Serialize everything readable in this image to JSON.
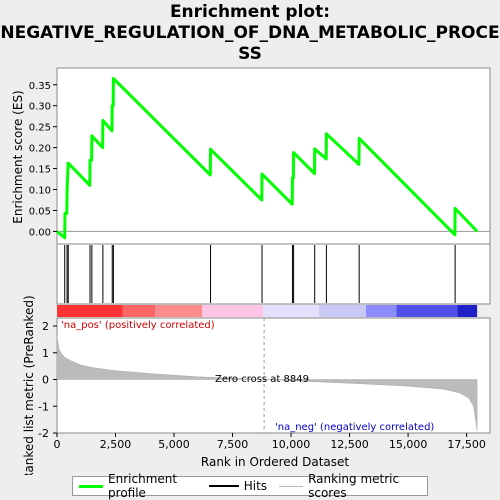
{
  "title": "Enrichment plot:\nNEGATIVE_REGULATION_OF_DNA_METABOLIC_PROCESS",
  "title_line1": "Enrichment plot:",
  "title_line2": "NEGATIVE_REGULATION_OF_DNA_METABOLIC_PROCE",
  "title_line3": "SS",
  "colors": {
    "profile": "#00ff00",
    "hits": "#000000",
    "ranking": "#bbbbbb",
    "pos_text": "#cc0000",
    "neg_text": "#0000cc"
  },
  "chart_data": [
    {
      "type": "line",
      "ylabel": "Enrichment score (ES)",
      "xlim": [
        0,
        18500
      ],
      "ylim": [
        -0.03,
        0.39
      ],
      "yticks": [
        "0.00",
        "0.05",
        "0.10",
        "0.15",
        "0.20",
        "0.25",
        "0.30",
        "0.35"
      ],
      "ytick_values": [
        0.0,
        0.05,
        0.1,
        0.15,
        0.2,
        0.25,
        0.3,
        0.35
      ],
      "series": [
        {
          "x": [
            0,
            330,
            340,
            420,
            430,
            480,
            1400,
            1410,
            1480,
            1490,
            1950,
            1960,
            2350,
            2360,
            2400,
            2410,
            6550,
            6560,
            8750,
            8760,
            10050,
            10060,
            10100,
            10110,
            11000,
            11010,
            11500,
            11510,
            12900,
            12910,
            17000,
            17010,
            17950
          ],
          "y": [
            0.0,
            -0.015,
            0.043,
            0.043,
            0.1,
            0.163,
            0.11,
            0.17,
            0.17,
            0.228,
            0.2,
            0.265,
            0.24,
            0.3,
            0.3,
            0.365,
            0.135,
            0.196,
            0.075,
            0.137,
            0.065,
            0.128,
            0.128,
            0.188,
            0.138,
            0.197,
            0.173,
            0.233,
            0.16,
            0.222,
            -0.008,
            0.055,
            0.0
          ]
        }
      ]
    },
    {
      "type": "hits",
      "hit_positions": [
        330,
        430,
        480,
        1410,
        1490,
        1960,
        2360,
        2410,
        6560,
        8760,
        10060,
        10110,
        11010,
        11510,
        12910,
        17010
      ]
    },
    {
      "type": "area",
      "xlabel": "Rank in Ordered Dataset",
      "ylabel": "Ranked list metric (PreRanked)",
      "xlim": [
        0,
        18500
      ],
      "ylim": [
        -2,
        2.3
      ],
      "xticks": [
        "0",
        "2,500",
        "5,000",
        "7,500",
        "10,000",
        "12,500",
        "15,000",
        "17,500"
      ],
      "xtick_values": [
        0,
        2500,
        5000,
        7500,
        10000,
        12500,
        15000,
        17500
      ],
      "yticks": [
        "-2",
        "-1",
        "0",
        "1",
        "2"
      ],
      "ytick_values": [
        -2,
        -1,
        0,
        1,
        2
      ],
      "x": [
        0,
        100,
        300,
        600,
        1000,
        1500,
        2500,
        4000,
        6000,
        8849,
        11000,
        13000,
        15000,
        16500,
        17200,
        17600,
        17800,
        17950
      ],
      "y": [
        1.6,
        1.1,
        0.85,
        0.7,
        0.55,
        0.45,
        0.33,
        0.22,
        0.1,
        0.0,
        -0.08,
        -0.16,
        -0.25,
        -0.36,
        -0.5,
        -0.7,
        -1.0,
        -1.9
      ],
      "zero_cross_label": "Zero cross at 8849",
      "zero_cross": 8849,
      "pos_label": "'na_pos' (positively correlated)",
      "neg_label": "'na_neg' (negatively correlated)"
    }
  ],
  "legend": {
    "profile": "Enrichment profile",
    "hits": "Hits",
    "ranking": "Ranking metric scores"
  }
}
